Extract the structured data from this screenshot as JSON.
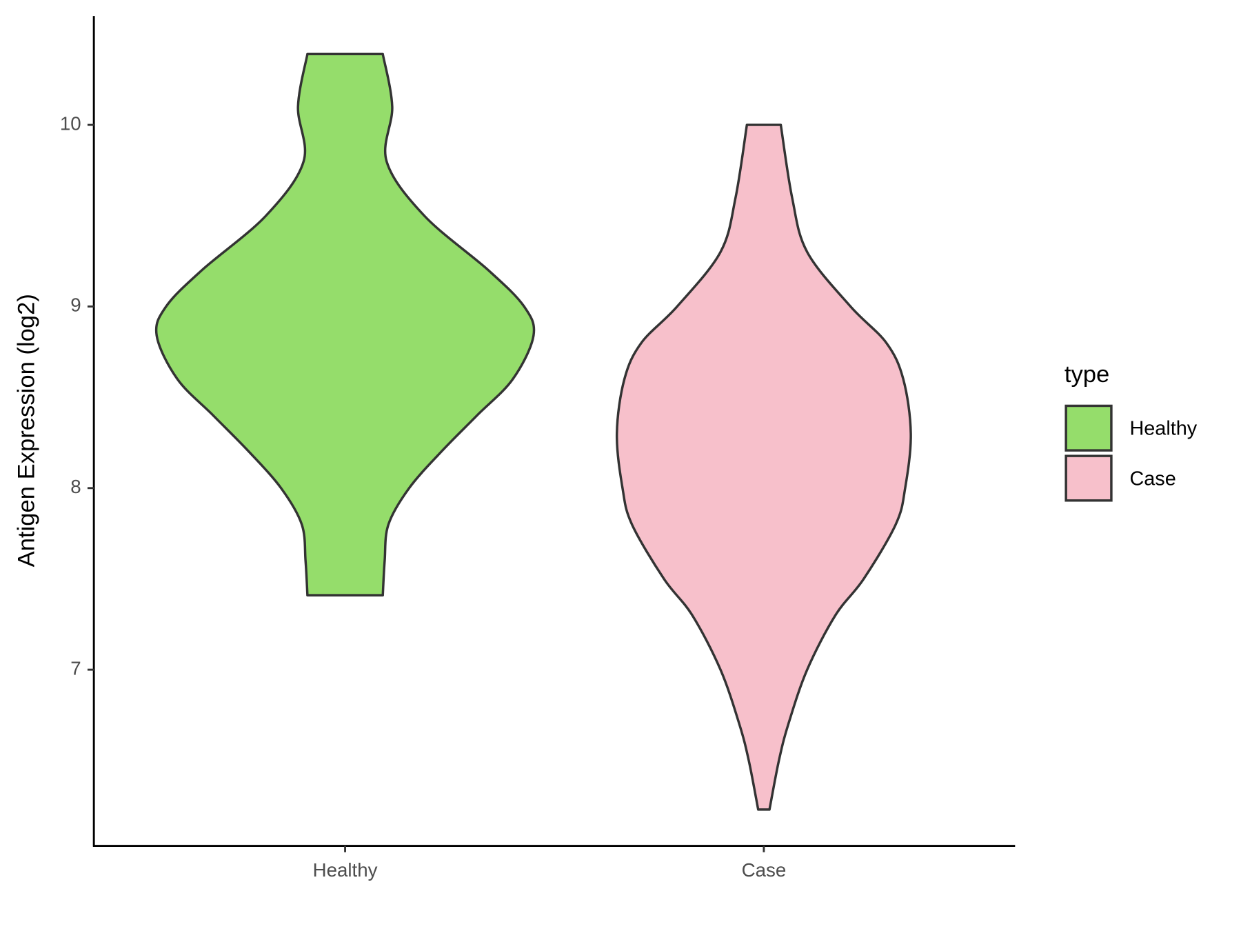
{
  "chart_data": {
    "type": "violin",
    "y_label": "Antigen Expression (log2)",
    "categories": [
      "Healthy",
      "Case"
    ],
    "ylim": [
      6.03,
      10.6
    ],
    "yticks": [
      7,
      8,
      9,
      10
    ],
    "legend_title": "type",
    "legend_position": "right",
    "series": [
      {
        "name": "Healthy",
        "color": "#95dd6b",
        "y": [
          7.41,
          7.6,
          7.8,
          8.0,
          8.2,
          8.4,
          8.6,
          8.84,
          9.0,
          9.2,
          9.5,
          9.8,
          10.1,
          10.39
        ],
        "density": [
          0.2,
          0.21,
          0.23,
          0.34,
          0.51,
          0.7,
          0.89,
          1.0,
          0.95,
          0.76,
          0.42,
          0.22,
          0.25,
          0.2
        ]
      },
      {
        "name": "Case",
        "color": "#f7c0cb",
        "y": [
          6.23,
          6.5,
          6.7,
          7.0,
          7.3,
          7.5,
          7.8,
          8.0,
          8.3,
          8.6,
          8.8,
          9.0,
          9.3,
          9.6,
          10.0
        ],
        "density": [
          0.03,
          0.08,
          0.13,
          0.23,
          0.38,
          0.53,
          0.7,
          0.75,
          0.78,
          0.74,
          0.65,
          0.46,
          0.23,
          0.15,
          0.09
        ]
      }
    ]
  }
}
